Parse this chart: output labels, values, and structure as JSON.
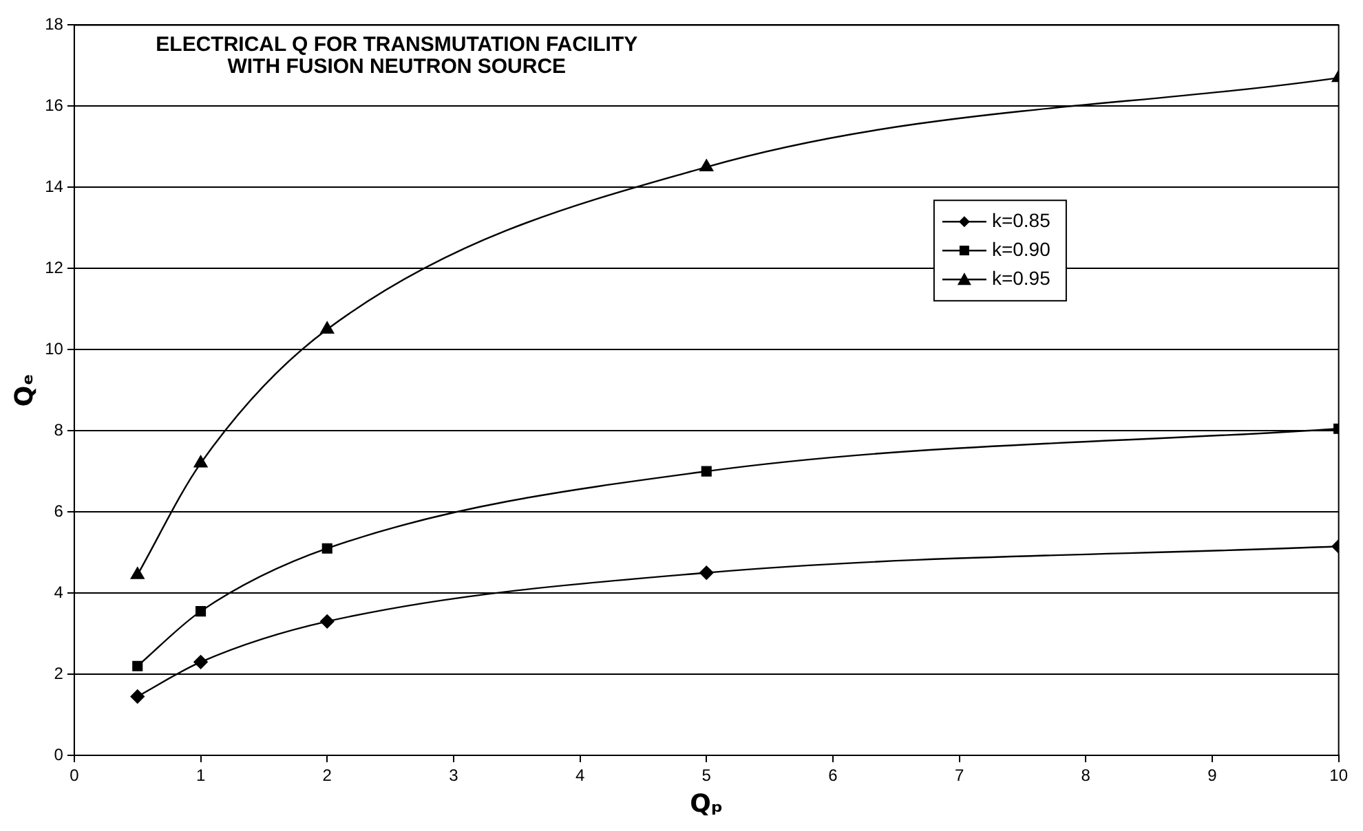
{
  "chart_data": {
    "type": "line",
    "title": "ELECTRICAL Q FOR TRANSMUTATION FACILITY\nWITH FUSION NEUTRON SOURCE",
    "xlabel": "Qₚ",
    "ylabel": "Qₑ",
    "x": [
      0.5,
      1,
      2,
      5,
      10
    ],
    "series": [
      {
        "name": "k=0.85",
        "color": "#000000",
        "marker": "diamond",
        "values": [
          1.45,
          2.3,
          3.3,
          4.5,
          5.15
        ]
      },
      {
        "name": "k=0.90",
        "color": "#000000",
        "marker": "square",
        "values": [
          2.2,
          3.55,
          5.1,
          7.0,
          8.05
        ]
      },
      {
        "name": "k=0.95",
        "color": "#000000",
        "marker": "triangle",
        "values": [
          4.45,
          7.2,
          10.5,
          14.5,
          16.7
        ]
      }
    ],
    "xlim": [
      0,
      10
    ],
    "xticks": [
      0,
      1,
      2,
      3,
      4,
      5,
      6,
      7,
      8,
      9,
      10
    ],
    "ylim": [
      0,
      18
    ],
    "yticks": [
      0,
      2,
      4,
      6,
      8,
      10,
      12,
      14,
      16,
      18
    ],
    "grid": "y",
    "legend": "top right",
    "line_style": "solid"
  }
}
